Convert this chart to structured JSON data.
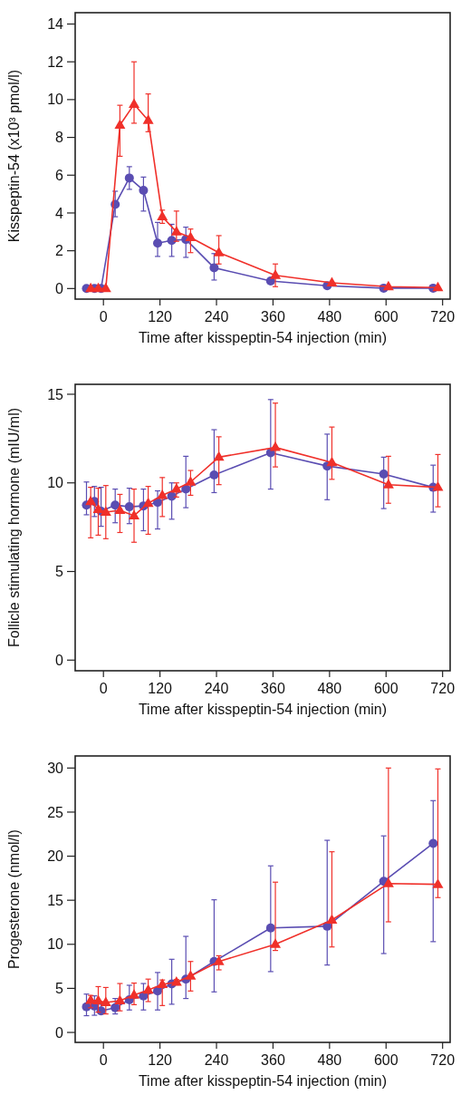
{
  "chart_data": [
    {
      "type": "line",
      "ylabel": "Kisspeptin-54 (x10³ pmol/l)",
      "xlabel": "Time after kisspeptin-54 injection (min)",
      "xlim": [
        -60,
        736
      ],
      "xticks": [
        0,
        120,
        240,
        360,
        480,
        600,
        720
      ],
      "ylim": [
        -0.56,
        14.6
      ],
      "yticks": [
        0,
        2,
        4,
        6,
        8,
        10,
        12,
        14
      ],
      "grid": false,
      "line_style": "solid",
      "series": [
        {
          "color": "#5a4db2",
          "marker": "circle",
          "x": [
            -36,
            -19,
            -5,
            25,
            55,
            85,
            115,
            145,
            175,
            235,
            355,
            475,
            595,
            700
          ],
          "values": [
            0,
            0,
            0,
            4.45,
            5.85,
            5.2,
            2.4,
            2.55,
            2.6,
            1.1,
            0.4,
            0.15,
            0.02,
            0.02
          ],
          "errors": [
            null,
            null,
            null,
            [
              3.8,
              5.15
            ],
            [
              5.25,
              6.45
            ],
            [
              4.1,
              5.9
            ],
            [
              1.7,
              3.5
            ],
            [
              1.7,
              3.4
            ],
            [
              1.65,
              3.25
            ],
            [
              0.45,
              1.85
            ],
            null,
            null,
            null,
            null
          ]
        },
        {
          "color": "#f0302a",
          "marker": "triangle",
          "x": [
            -27,
            -11,
            5,
            35,
            65,
            95,
            125,
            155,
            185,
            245,
            365,
            485,
            605,
            710
          ],
          "values": [
            0,
            0,
            0,
            8.65,
            9.75,
            8.9,
            3.8,
            3.0,
            2.7,
            1.9,
            0.7,
            0.3,
            0.1,
            0.05
          ],
          "errors": [
            null,
            null,
            null,
            [
              7.0,
              9.7
            ],
            [
              8.75,
              12.0
            ],
            [
              8.3,
              10.3
            ],
            [
              3.45,
              4.15
            ],
            [
              2.5,
              4.1
            ],
            [
              1.9,
              3.15
            ],
            [
              1.3,
              2.8
            ],
            [
              0.1,
              1.3
            ],
            null,
            null,
            null
          ]
        }
      ]
    },
    {
      "type": "line",
      "ylabel": "Follicle stimulating hormone (mIU/ml)",
      "xlabel": "Time after kisspeptin-54 injection (min)",
      "xlim": [
        -60,
        736
      ],
      "xticks": [
        0,
        120,
        240,
        360,
        480,
        600,
        720
      ],
      "ylim": [
        -0.6,
        15.56
      ],
      "yticks": [
        0,
        5,
        10,
        15
      ],
      "grid": false,
      "line_style": "solid",
      "series": [
        {
          "color": "#5a4db2",
          "marker": "circle",
          "x": [
            -36,
            -19,
            -5,
            25,
            55,
            85,
            115,
            145,
            175,
            235,
            355,
            475,
            595,
            700
          ],
          "values": [
            8.75,
            8.95,
            8.4,
            8.75,
            8.65,
            8.7,
            8.9,
            9.25,
            9.65,
            10.45,
            11.7,
            10.95,
            10.5,
            9.75
          ],
          "errors": [
            [
              8.2,
              10.05
            ],
            [
              8.1,
              9.8
            ],
            [
              7.55,
              9.75
            ],
            [
              7.75,
              9.65
            ],
            [
              7.7,
              9.7
            ],
            [
              7.3,
              9.65
            ],
            [
              7.4,
              9.55
            ],
            [
              7.95,
              10.0
            ],
            [
              8.6,
              11.5
            ],
            [
              9.45,
              13.0
            ],
            [
              9.65,
              14.7
            ],
            [
              9.05,
              12.75
            ],
            [
              8.55,
              11.45
            ],
            [
              8.35,
              11.0
            ]
          ]
        },
        {
          "color": "#f0302a",
          "marker": "triangle",
          "x": [
            -27,
            -11,
            5,
            35,
            65,
            95,
            125,
            155,
            185,
            245,
            365,
            485,
            605,
            710
          ],
          "values": [
            8.95,
            8.5,
            8.35,
            8.45,
            8.15,
            8.85,
            9.3,
            9.65,
            10.05,
            11.45,
            12.0,
            11.15,
            9.9,
            9.75
          ],
          "errors": [
            [
              6.9,
              9.75
            ],
            [
              7.05,
              9.7
            ],
            [
              6.85,
              9.85
            ],
            [
              7.2,
              9.35
            ],
            [
              6.65,
              9.65
            ],
            [
              7.1,
              9.8
            ],
            [
              8.1,
              10.3
            ],
            [
              9.2,
              10.0
            ],
            [
              9.3,
              10.7
            ],
            [
              9.9,
              12.6
            ],
            [
              10.9,
              14.5
            ],
            [
              10.2,
              13.15
            ],
            [
              8.85,
              11.5
            ],
            [
              8.65,
              11.6
            ]
          ]
        }
      ]
    },
    {
      "type": "line",
      "ylabel": "Progesterone (nmol/l)",
      "xlabel": "Time after kisspeptin-54 injection (min)",
      "xlim": [
        -60,
        736
      ],
      "xticks": [
        0,
        120,
        240,
        360,
        480,
        600,
        720
      ],
      "ylim": [
        -1.13,
        31.37
      ],
      "yticks": [
        0,
        5,
        10,
        15,
        20,
        25,
        30
      ],
      "grid": false,
      "line_style": "solid",
      "series": [
        {
          "color": "#5a4db2",
          "marker": "circle",
          "x": [
            -36,
            -19,
            -5,
            25,
            55,
            85,
            115,
            145,
            175,
            235,
            355,
            475,
            595,
            700
          ],
          "values": [
            2.9,
            3.0,
            2.45,
            2.8,
            3.7,
            4.15,
            4.7,
            5.5,
            6.05,
            8.05,
            11.85,
            12.05,
            17.15,
            21.45
          ],
          "errors": [
            [
              1.9,
              4.35
            ],
            [
              1.95,
              4.15
            ],
            [
              2.1,
              3.2
            ],
            [
              2.1,
              3.85
            ],
            [
              2.55,
              5.35
            ],
            [
              2.55,
              5.55
            ],
            [
              2.55,
              6.8
            ],
            [
              3.2,
              8.3
            ],
            [
              3.85,
              10.9
            ],
            [
              4.6,
              15.05
            ],
            [
              6.9,
              18.9
            ],
            [
              7.65,
              21.8
            ],
            [
              8.95,
              22.3
            ],
            [
              10.3,
              26.3
            ]
          ]
        },
        {
          "color": "#f0302a",
          "marker": "triangle",
          "x": [
            -27,
            -11,
            5,
            35,
            65,
            95,
            125,
            155,
            185,
            245,
            365,
            485,
            605,
            710
          ],
          "values": [
            3.65,
            3.6,
            3.4,
            3.6,
            4.25,
            4.8,
            5.45,
            5.7,
            6.4,
            8.05,
            10.0,
            12.75,
            16.9,
            16.8
          ],
          "errors": [
            [
              2.8,
              4.2
            ],
            [
              2.3,
              5.2
            ],
            [
              2.1,
              5.1
            ],
            [
              2.45,
              5.55
            ],
            [
              3.15,
              5.6
            ],
            [
              3.5,
              6.05
            ],
            [
              3.05,
              5.95
            ],
            [
              5.4,
              6.0
            ],
            [
              4.7,
              8.05
            ],
            [
              7.1,
              8.7
            ],
            [
              9.3,
              17.05
            ],
            [
              9.7,
              20.5
            ],
            [
              12.55,
              30.0
            ],
            [
              15.3,
              29.9
            ]
          ]
        }
      ]
    }
  ]
}
